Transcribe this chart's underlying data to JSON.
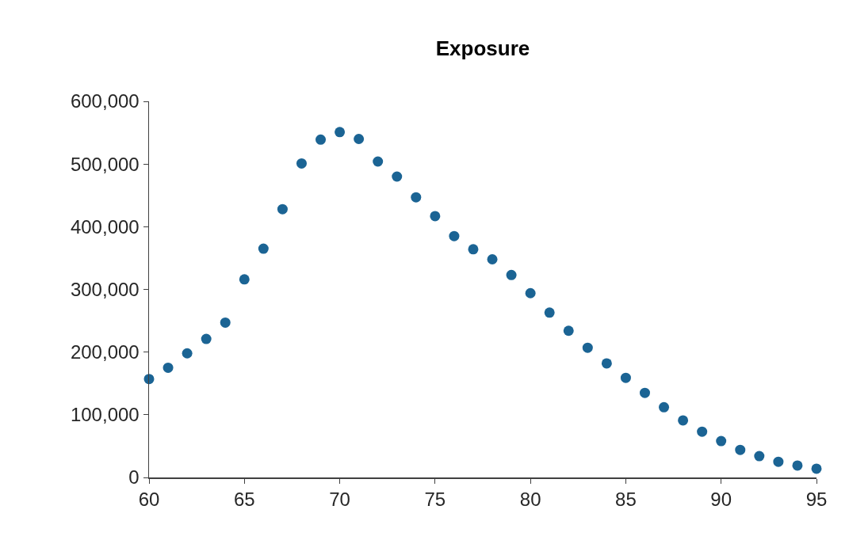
{
  "chart_data": {
    "type": "scatter",
    "title": "Exposure",
    "x": [
      60,
      61,
      62,
      63,
      64,
      65,
      66,
      67,
      68,
      69,
      70,
      71,
      72,
      73,
      74,
      75,
      76,
      77,
      78,
      79,
      80,
      81,
      82,
      83,
      84,
      85,
      86,
      87,
      88,
      89,
      90,
      91,
      92,
      93,
      94,
      95
    ],
    "series": [
      {
        "color": "#1b6494",
        "values": [
          157000,
          175000,
          198000,
          221000,
          247000,
          316000,
          365000,
          428000,
          501000,
          539000,
          551000,
          540000,
          504000,
          480000,
          447000,
          417000,
          385000,
          364000,
          348000,
          323000,
          294000,
          263000,
          234000,
          207000,
          182000,
          159000,
          135000,
          112000,
          91000,
          73000,
          58000,
          44000,
          34000,
          25000,
          19000,
          14000
        ]
      }
    ],
    "xlim": [
      60,
      95
    ],
    "xticks": [
      60,
      65,
      70,
      75,
      80,
      85,
      90,
      95
    ],
    "ylim": [
      0,
      600000
    ],
    "yticks": [
      {
        "value": 0,
        "label": "0"
      },
      {
        "value": 100000,
        "label": "100,000"
      },
      {
        "value": 200000,
        "label": "200,000"
      },
      {
        "value": 300000,
        "label": "300,000"
      },
      {
        "value": 400000,
        "label": "400,000"
      },
      {
        "value": 500000,
        "label": "500,000"
      },
      {
        "value": 600000,
        "label": "600,000"
      }
    ],
    "grid": false,
    "marker": "circle"
  }
}
